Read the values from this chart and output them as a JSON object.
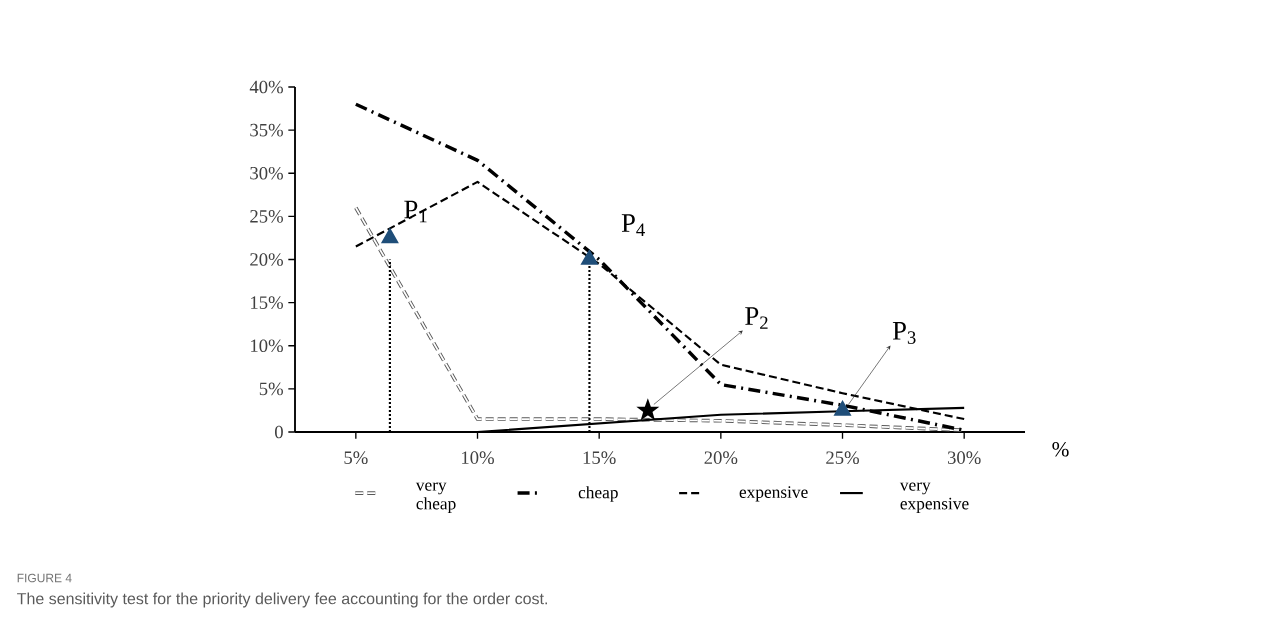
{
  "chart_data": {
    "type": "line",
    "xlabel": "%",
    "x": [
      5,
      10,
      15,
      20,
      25,
      30
    ],
    "series": [
      {
        "name": "very cheap",
        "color": "#595959",
        "line_style": "dashed",
        "values": [
          26,
          1.5,
          1.5,
          1.3,
          0.8,
          0.2
        ]
      },
      {
        "name": "cheap",
        "color": "#000000",
        "line_style": "dashdot",
        "values": [
          38,
          31.5,
          20,
          5.5,
          3.1,
          0.2
        ]
      },
      {
        "name": "expensive",
        "color": "#000000",
        "line_style": "dashed",
        "values": [
          21.5,
          29,
          19.5,
          7.8,
          4.5,
          1.5
        ]
      },
      {
        "name": "very expensive",
        "color": "#000000",
        "line_style": "solid",
        "values": [
          0,
          0,
          1,
          2,
          2.4,
          2.8
        ]
      },
      {
        "type": "line",
        "color": "#000000",
        "line_style": "dotted",
        "x": [
          6.4,
          6.4
        ],
        "values": [
          0,
          20
        ]
      },
      {
        "type": "line",
        "color": "#000000",
        "line_style": "dotted",
        "x": [
          14.6,
          14.6
        ],
        "values": [
          0,
          20
        ]
      },
      {
        "type": "scatter",
        "color": "#1f4e79",
        "marker": "triangle",
        "x": [
          6.4,
          14.6,
          25
        ],
        "values": [
          22.5,
          20,
          2.5
        ]
      },
      {
        "type": "scatter",
        "color": "#000000",
        "marker": "star",
        "x": [
          17
        ],
        "values": [
          2.5
        ]
      }
    ],
    "xlim": [
      2.5,
      32.5
    ],
    "xticks": [
      {
        "value": 5,
        "label": "5%"
      },
      {
        "value": 10,
        "label": "10%"
      },
      {
        "value": 15,
        "label": "15%"
      },
      {
        "value": 20,
        "label": "20%"
      },
      {
        "value": 25,
        "label": "25%"
      },
      {
        "value": 30,
        "label": "30%"
      }
    ],
    "ylim": [
      0,
      40
    ],
    "yticks": [
      0,
      {
        "value": 5,
        "label": "5%"
      },
      {
        "value": 10,
        "label": "10%"
      },
      {
        "value": 15,
        "label": "15%"
      },
      {
        "value": 20,
        "label": "20%"
      },
      {
        "value": 25,
        "label": "25%"
      },
      {
        "value": 30,
        "label": "30%"
      },
      {
        "value": 35,
        "label": "35%"
      },
      {
        "value": 40,
        "label": "40%"
      }
    ],
    "grid": false,
    "legend": "bottom",
    "annotations": [
      {
        "text": "P$_{1}$",
        "x": 6.4,
        "y": 22.5
      },
      {
        "text": "P$_{4}$",
        "x": 14.6,
        "y": 20
      },
      {
        "text": "P$_{2}$",
        "x": 17,
        "y": 2.5
      },
      {
        "text": "P$_{3}$",
        "x": 25,
        "y": 2.5
      },
      "FIGURE 4",
      "The sensitivity test for the priority delivery fee accounting for the order cost."
    ]
  }
}
